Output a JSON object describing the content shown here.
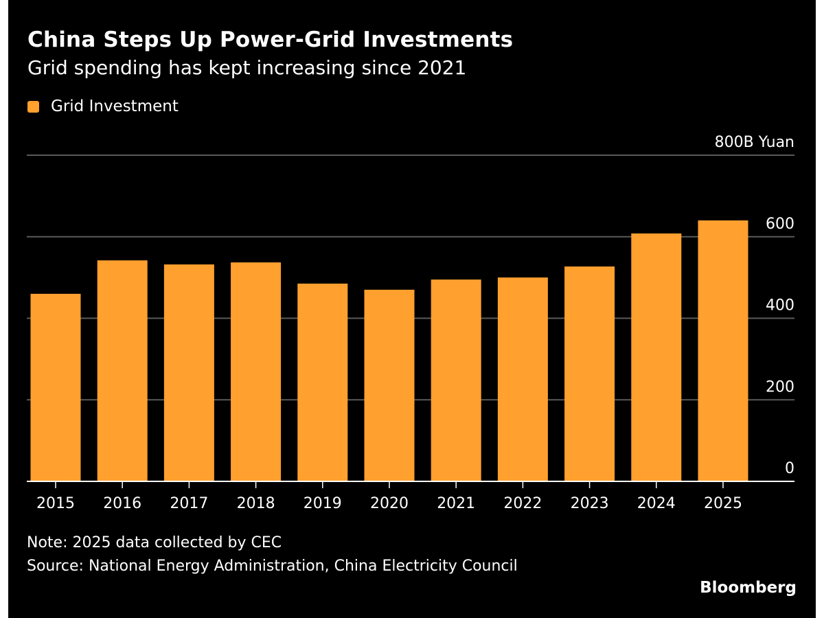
{
  "chart_data": {
    "type": "bar",
    "title": "China Steps Up Power-Grid Investments",
    "subtitle": "Grid spending has kept increasing since 2021",
    "legend": [
      {
        "label": "Grid Investment",
        "color": "#FFA02F"
      }
    ],
    "legend_position": "top-left",
    "categories": [
      "2015",
      "2016",
      "2017",
      "2018",
      "2019",
      "2020",
      "2021",
      "2022",
      "2023",
      "2024",
      "2025"
    ],
    "series": [
      {
        "name": "Grid Investment",
        "color": "#FFA02F",
        "values": [
          460,
          542,
          532,
          537,
          485,
          470,
          495,
          500,
          527,
          608,
          640
        ]
      }
    ],
    "xlabel": "",
    "ylabel": "800B Yuan",
    "ylim": [
      0,
      800
    ],
    "yticks": [
      0,
      200,
      400,
      600,
      800
    ],
    "ytick_labels": [
      "0",
      "200",
      "400",
      "600",
      "800B Yuan"
    ],
    "y_axis_side": "right",
    "grid": true
  },
  "footer": {
    "note": "Note: 2025 data collected by CEC",
    "source": "Source: National Energy Administration, China Electricity Council",
    "brand": "Bloomberg"
  },
  "colors": {
    "background": "#000000",
    "bar": "#FFA02F",
    "gridline": "#5a5a5a",
    "text": "#ffffff"
  }
}
